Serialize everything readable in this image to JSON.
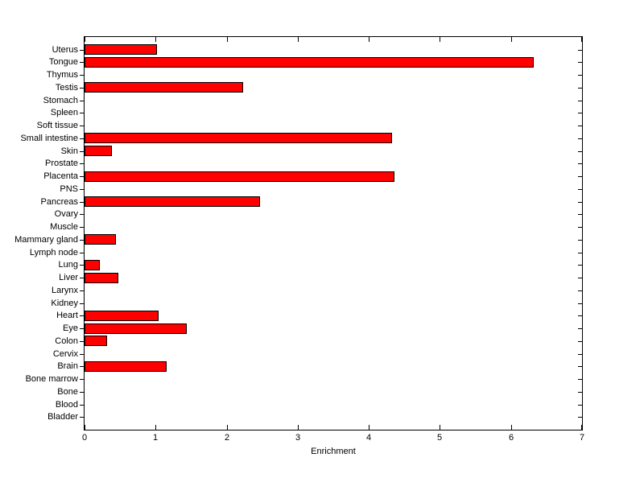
{
  "figure": {
    "background": "#FFFFFF",
    "axis_color": "#000000",
    "bar_color": "#FF0000",
    "bar_edge_color": "#000000",
    "x_ticks": [
      "0",
      "1",
      "2",
      "3",
      "4",
      "5",
      "6",
      "7"
    ]
  },
  "chart_data": {
    "type": "bar",
    "orientation": "horizontal",
    "title": "",
    "xlabel": "Enrichment",
    "ylabel": "",
    "xlim": [
      0,
      7
    ],
    "grid": false,
    "legend": null,
    "categories_order": "top-to-bottom",
    "categories": [
      "Uterus",
      "Tongue",
      "Thymus",
      "Testis",
      "Stomach",
      "Spleen",
      "Soft tissue",
      "Small intestine",
      "Skin",
      "Prostate",
      "Placenta",
      "PNS",
      "Pancreas",
      "Ovary",
      "Muscle",
      "Mammary gland",
      "Lymph node",
      "Lung",
      "Liver",
      "Larynx",
      "Kidney",
      "Heart",
      "Eye",
      "Colon",
      "Cervix",
      "Brain",
      "Bone marrow",
      "Bone",
      "Blood",
      "Bladder"
    ],
    "values": [
      1.02,
      6.32,
      0,
      2.23,
      0,
      0,
      0,
      4.33,
      0.38,
      0,
      4.36,
      0,
      2.47,
      0,
      0,
      0.44,
      0,
      0.21,
      0.48,
      0,
      0,
      1.04,
      1.44,
      0.32,
      0,
      1.16,
      0,
      0,
      0,
      0
    ]
  }
}
